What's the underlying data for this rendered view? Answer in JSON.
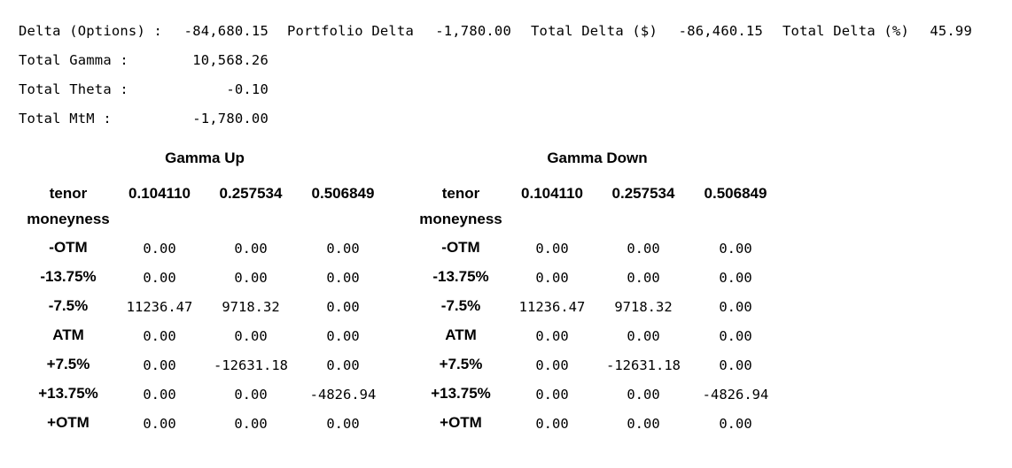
{
  "summary": {
    "delta_options": {
      "label": "Delta (Options) :",
      "value": "-84,680.15"
    },
    "portfolio_delta": {
      "label": "Portfolio Delta",
      "value": "-1,780.00"
    },
    "total_delta_usd": {
      "label": "Total Delta ($)",
      "value": "-86,460.15"
    },
    "total_delta_pct": {
      "label": "Total Delta (%)",
      "value": "45.99"
    },
    "total_gamma": {
      "label": "Total Gamma :",
      "value": "10,568.26"
    },
    "total_theta": {
      "label": "Total Theta :",
      "value": "-0.10"
    },
    "total_mtm": {
      "label": "Total MtM :",
      "value": "-1,780.00"
    }
  },
  "tables": [
    {
      "title": "Gamma Up",
      "corner_label": "tenor",
      "index_label": "moneyness",
      "columns": [
        "0.104110",
        "0.257534",
        "0.506849"
      ],
      "rows": [
        {
          "label": "-OTM",
          "values": [
            "0.00",
            "0.00",
            "0.00"
          ]
        },
        {
          "label": "-13.75%",
          "values": [
            "0.00",
            "0.00",
            "0.00"
          ]
        },
        {
          "label": "-7.5%",
          "values": [
            "11236.47",
            "9718.32",
            "0.00"
          ]
        },
        {
          "label": "ATM",
          "values": [
            "0.00",
            "0.00",
            "0.00"
          ]
        },
        {
          "label": "+7.5%",
          "values": [
            "0.00",
            "-12631.18",
            "0.00"
          ]
        },
        {
          "label": "+13.75%",
          "values": [
            "0.00",
            "0.00",
            "-4826.94"
          ]
        },
        {
          "label": "+OTM",
          "values": [
            "0.00",
            "0.00",
            "0.00"
          ]
        }
      ]
    },
    {
      "title": "Gamma Down",
      "corner_label": "tenor",
      "index_label": "moneyness",
      "columns": [
        "0.104110",
        "0.257534",
        "0.506849"
      ],
      "rows": [
        {
          "label": "-OTM",
          "values": [
            "0.00",
            "0.00",
            "0.00"
          ]
        },
        {
          "label": "-13.75%",
          "values": [
            "0.00",
            "0.00",
            "0.00"
          ]
        },
        {
          "label": "-7.5%",
          "values": [
            "11236.47",
            "9718.32",
            "0.00"
          ]
        },
        {
          "label": "ATM",
          "values": [
            "0.00",
            "0.00",
            "0.00"
          ]
        },
        {
          "label": "+7.5%",
          "values": [
            "0.00",
            "-12631.18",
            "0.00"
          ]
        },
        {
          "label": "+13.75%",
          "values": [
            "0.00",
            "0.00",
            "-4826.94"
          ]
        },
        {
          "label": "+OTM",
          "values": [
            "0.00",
            "0.00",
            "0.00"
          ]
        }
      ]
    }
  ]
}
